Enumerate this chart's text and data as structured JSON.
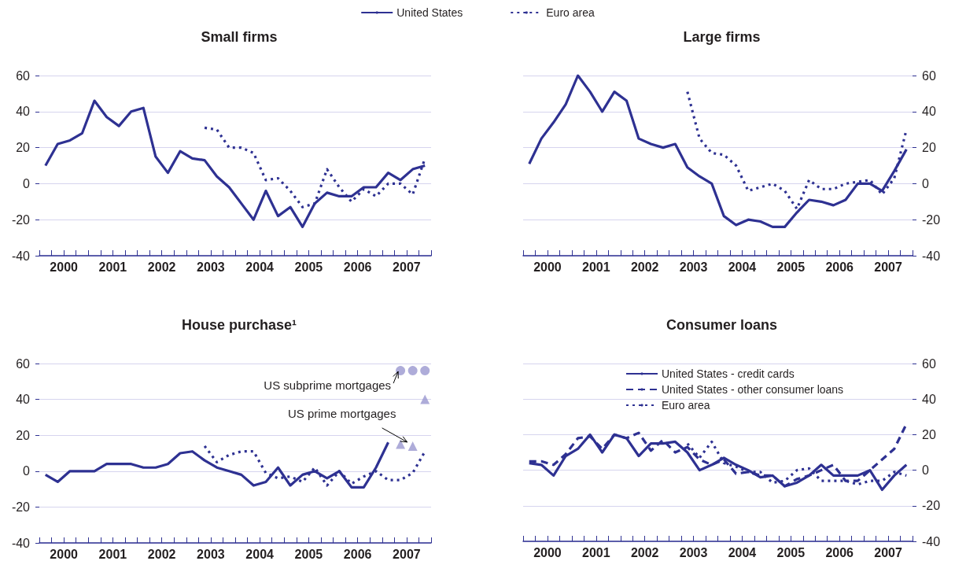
{
  "chart_data": [
    {
      "type": "line",
      "title": "Small firms",
      "legend": "top",
      "grid": "y",
      "x": [
        2000.125,
        2000.375,
        2000.625,
        2000.875,
        2001.125,
        2001.375,
        2001.625,
        2001.875,
        2002.125,
        2002.375,
        2002.625,
        2002.875,
        2003.125,
        2003.375,
        2003.625,
        2003.875,
        2004.125,
        2004.375,
        2004.625,
        2004.875,
        2005.125,
        2005.375,
        2005.625,
        2005.875,
        2006.125,
        2006.375,
        2006.625,
        2006.875,
        2007.125,
        2007.375,
        2007.625,
        2007.875
      ],
      "xlim": [
        2000,
        2008
      ],
      "xticks": [
        {
          "value": 2000,
          "label": null
        },
        {
          "value": 2000.25,
          "label": null
        },
        {
          "value": 2000.5,
          "label": "2000"
        },
        {
          "value": 2000.75,
          "label": null
        },
        {
          "value": 2001,
          "label": null
        },
        {
          "value": 2001.25,
          "label": null
        },
        {
          "value": 2001.5,
          "label": "2001"
        },
        {
          "value": 2001.75,
          "label": null
        },
        {
          "value": 2002,
          "label": null
        },
        {
          "value": 2002.25,
          "label": null
        },
        {
          "value": 2002.5,
          "label": "2002"
        },
        {
          "value": 2002.75,
          "label": null
        },
        {
          "value": 2003,
          "label": null
        },
        {
          "value": 2003.25,
          "label": null
        },
        {
          "value": 2003.5,
          "label": "2003"
        },
        {
          "value": 2003.75,
          "label": null
        },
        {
          "value": 2004,
          "label": null
        },
        {
          "value": 2004.25,
          "label": null
        },
        {
          "value": 2004.5,
          "label": "2004"
        },
        {
          "value": 2004.75,
          "label": null
        },
        {
          "value": 2005,
          "label": null
        },
        {
          "value": 2005.25,
          "label": null
        },
        {
          "value": 2005.5,
          "label": "2005"
        },
        {
          "value": 2005.75,
          "label": null
        },
        {
          "value": 2006,
          "label": null
        },
        {
          "value": 2006.25,
          "label": null
        },
        {
          "value": 2006.5,
          "label": "2006"
        },
        {
          "value": 2006.75,
          "label": null
        },
        {
          "value": 2007,
          "label": null
        },
        {
          "value": 2007.25,
          "label": null
        },
        {
          "value": 2007.5,
          "label": "2007"
        },
        {
          "value": 2007.75,
          "label": null
        },
        {
          "value": 2008,
          "label": null
        }
      ],
      "ylim": [
        -40,
        60
      ],
      "yticks": [
        -40,
        -20,
        0,
        20,
        40,
        60
      ],
      "series": [
        {
          "name": "United States",
          "color": "#2e3192",
          "line_style": "solid",
          "marker": "none",
          "values": [
            10,
            22,
            24,
            28,
            46,
            37,
            32,
            40,
            42,
            15,
            6,
            18,
            14,
            13,
            4,
            -2,
            -11,
            -20,
            -4,
            -18,
            -13,
            -24,
            -11,
            -5,
            -7,
            -7,
            -2,
            -2,
            6,
            2,
            8,
            10
          ]
        },
        {
          "name": "Euro area",
          "color": "#2e3192",
          "line_style": "dotted",
          "marker": "none",
          "values": [
            null,
            null,
            null,
            null,
            null,
            null,
            null,
            null,
            null,
            null,
            null,
            null,
            null,
            31,
            30,
            20,
            20,
            17,
            2,
            3,
            -4,
            -13,
            -11,
            8,
            -2,
            -10,
            -3,
            -7,
            0,
            0,
            -6,
            14
          ]
        }
      ]
    },
    {
      "type": "line",
      "title": "Large firms",
      "grid": "y",
      "x": [
        2000.125,
        2000.375,
        2000.625,
        2000.875,
        2001.125,
        2001.375,
        2001.625,
        2001.875,
        2002.125,
        2002.375,
        2002.625,
        2002.875,
        2003.125,
        2003.375,
        2003.625,
        2003.875,
        2004.125,
        2004.375,
        2004.625,
        2004.875,
        2005.125,
        2005.375,
        2005.625,
        2005.875,
        2006.125,
        2006.375,
        2006.625,
        2006.875,
        2007.125,
        2007.375,
        2007.625,
        2007.875
      ],
      "xlim": [
        2000,
        2008
      ],
      "xticks": [
        {
          "value": 2000,
          "label": null
        },
        {
          "value": 2000.25,
          "label": null
        },
        {
          "value": 2000.5,
          "label": "2000"
        },
        {
          "value": 2000.75,
          "label": null
        },
        {
          "value": 2001,
          "label": null
        },
        {
          "value": 2001.25,
          "label": null
        },
        {
          "value": 2001.5,
          "label": "2001"
        },
        {
          "value": 2001.75,
          "label": null
        },
        {
          "value": 2002,
          "label": null
        },
        {
          "value": 2002.25,
          "label": null
        },
        {
          "value": 2002.5,
          "label": "2002"
        },
        {
          "value": 2002.75,
          "label": null
        },
        {
          "value": 2003,
          "label": null
        },
        {
          "value": 2003.25,
          "label": null
        },
        {
          "value": 2003.5,
          "label": "2003"
        },
        {
          "value": 2003.75,
          "label": null
        },
        {
          "value": 2004,
          "label": null
        },
        {
          "value": 2004.25,
          "label": null
        },
        {
          "value": 2004.5,
          "label": "2004"
        },
        {
          "value": 2004.75,
          "label": null
        },
        {
          "value": 2005,
          "label": null
        },
        {
          "value": 2005.25,
          "label": null
        },
        {
          "value": 2005.5,
          "label": "2005"
        },
        {
          "value": 2005.75,
          "label": null
        },
        {
          "value": 2006,
          "label": null
        },
        {
          "value": 2006.25,
          "label": null
        },
        {
          "value": 2006.5,
          "label": "2006"
        },
        {
          "value": 2006.75,
          "label": null
        },
        {
          "value": 2007,
          "label": null
        },
        {
          "value": 2007.25,
          "label": null
        },
        {
          "value": 2007.5,
          "label": "2007"
        },
        {
          "value": 2007.75,
          "label": null
        },
        {
          "value": 2008,
          "label": null
        }
      ],
      "ylim": [
        -40,
        60
      ],
      "yticks": [
        -40,
        -20,
        0,
        20,
        40,
        60
      ],
      "series": [
        {
          "color": "#2e3192",
          "line_style": "solid",
          "marker": "none",
          "values": [
            11,
            25,
            34,
            44,
            60,
            51,
            40,
            51,
            46,
            25,
            22,
            20,
            22,
            9,
            4,
            0,
            -18,
            -23,
            -20,
            -21,
            -24,
            -24,
            -16,
            -9,
            -10,
            -12,
            -9,
            0,
            0,
            -4,
            7,
            19
          ]
        },
        {
          "color": "#2e3192",
          "line_style": "dotted",
          "marker": "none",
          "values": [
            null,
            null,
            null,
            null,
            null,
            null,
            null,
            null,
            null,
            null,
            null,
            null,
            null,
            51,
            25,
            17,
            16,
            10,
            -4,
            -2,
            0,
            -4,
            -14,
            2,
            -3,
            -3,
            0,
            1,
            2,
            -6,
            3,
            30
          ]
        }
      ]
    },
    {
      "type": "line",
      "title": "House purchase¹",
      "grid": "y",
      "x": [
        2000.125,
        2000.375,
        2000.625,
        2000.875,
        2001.125,
        2001.375,
        2001.625,
        2001.875,
        2002.125,
        2002.375,
        2002.625,
        2002.875,
        2003.125,
        2003.375,
        2003.625,
        2003.875,
        2004.125,
        2004.375,
        2004.625,
        2004.875,
        2005.125,
        2005.375,
        2005.625,
        2005.875,
        2006.125,
        2006.375,
        2006.625,
        2006.875,
        2007.125,
        2007.375,
        2007.625,
        2007.875
      ],
      "xlim": [
        2000,
        2008
      ],
      "xticks": [
        {
          "value": 2000,
          "label": null
        },
        {
          "value": 2000.25,
          "label": null
        },
        {
          "value": 2000.5,
          "label": "2000"
        },
        {
          "value": 2000.75,
          "label": null
        },
        {
          "value": 2001,
          "label": null
        },
        {
          "value": 2001.25,
          "label": null
        },
        {
          "value": 2001.5,
          "label": "2001"
        },
        {
          "value": 2001.75,
          "label": null
        },
        {
          "value": 2002,
          "label": null
        },
        {
          "value": 2002.25,
          "label": null
        },
        {
          "value": 2002.5,
          "label": "2002"
        },
        {
          "value": 2002.75,
          "label": null
        },
        {
          "value": 2003,
          "label": null
        },
        {
          "value": 2003.25,
          "label": null
        },
        {
          "value": 2003.5,
          "label": "2003"
        },
        {
          "value": 2003.75,
          "label": null
        },
        {
          "value": 2004,
          "label": null
        },
        {
          "value": 2004.25,
          "label": null
        },
        {
          "value": 2004.5,
          "label": "2004"
        },
        {
          "value": 2004.75,
          "label": null
        },
        {
          "value": 2005,
          "label": null
        },
        {
          "value": 2005.25,
          "label": null
        },
        {
          "value": 2005.5,
          "label": "2005"
        },
        {
          "value": 2005.75,
          "label": null
        },
        {
          "value": 2006,
          "label": null
        },
        {
          "value": 2006.25,
          "label": null
        },
        {
          "value": 2006.5,
          "label": "2006"
        },
        {
          "value": 2006.75,
          "label": null
        },
        {
          "value": 2007,
          "label": null
        },
        {
          "value": 2007.25,
          "label": null
        },
        {
          "value": 2007.5,
          "label": "2007"
        },
        {
          "value": 2007.75,
          "label": null
        },
        {
          "value": 2008,
          "label": null
        }
      ],
      "ylim": [
        -40,
        60
      ],
      "yticks": [
        -40,
        -20,
        0,
        20,
        40,
        60
      ],
      "annotations": [
        {
          "text": "US subprime mortgages",
          "x": 2007.375,
          "y": 56
        },
        {
          "text": "US prime mortgages",
          "x": 2007.625,
          "y": 14
        }
      ],
      "series": [
        {
          "color": "#2e3192",
          "line_style": "solid",
          "marker": "none",
          "values": [
            -2,
            -6,
            0,
            0,
            0,
            4,
            4,
            4,
            2,
            2,
            4,
            10,
            11,
            6,
            2,
            0,
            -2,
            -8,
            -6,
            2,
            -8,
            -2,
            0,
            -4,
            0,
            -9,
            -9,
            2,
            16,
            null,
            null,
            null
          ]
        },
        {
          "color": "#2e3192",
          "line_style": "dotted",
          "marker": "none",
          "values": [
            null,
            null,
            null,
            null,
            null,
            null,
            null,
            null,
            null,
            null,
            null,
            null,
            null,
            14,
            5,
            9,
            11,
            11,
            -1,
            -4,
            -3,
            -6,
            2,
            -8,
            0,
            -7,
            -3,
            0,
            -5,
            -5,
            -1,
            11
          ]
        },
        {
          "type": "scatter",
          "color": "#9a97d0",
          "marker": "circle",
          "values": [
            null,
            null,
            null,
            null,
            null,
            null,
            null,
            null,
            null,
            null,
            null,
            null,
            null,
            null,
            null,
            null,
            null,
            null,
            null,
            null,
            null,
            null,
            null,
            null,
            null,
            null,
            null,
            null,
            null,
            56,
            56,
            56
          ]
        },
        {
          "type": "scatter",
          "color": "#9a97d0",
          "marker": "triangle",
          "values": [
            null,
            null,
            null,
            null,
            null,
            null,
            null,
            null,
            null,
            null,
            null,
            null,
            null,
            null,
            null,
            null,
            null,
            null,
            null,
            null,
            null,
            null,
            null,
            null,
            null,
            null,
            null,
            null,
            null,
            15,
            14,
            40
          ]
        }
      ]
    },
    {
      "type": "line",
      "title": "Consumer loans",
      "grid": "y",
      "legend": "top left",
      "x": [
        2000.125,
        2000.375,
        2000.625,
        2000.875,
        2001.125,
        2001.375,
        2001.625,
        2001.875,
        2002.125,
        2002.375,
        2002.625,
        2002.875,
        2003.125,
        2003.375,
        2003.625,
        2003.875,
        2004.125,
        2004.375,
        2004.625,
        2004.875,
        2005.125,
        2005.375,
        2005.625,
        2005.875,
        2006.125,
        2006.375,
        2006.625,
        2006.875,
        2007.125,
        2007.375,
        2007.625,
        2007.875
      ],
      "xlim": [
        2000,
        2008
      ],
      "xticks": [
        {
          "value": 2000,
          "label": null
        },
        {
          "value": 2000.25,
          "label": null
        },
        {
          "value": 2000.5,
          "label": "2000"
        },
        {
          "value": 2000.75,
          "label": null
        },
        {
          "value": 2001,
          "label": null
        },
        {
          "value": 2001.25,
          "label": null
        },
        {
          "value": 2001.5,
          "label": "2001"
        },
        {
          "value": 2001.75,
          "label": null
        },
        {
          "value": 2002,
          "label": null
        },
        {
          "value": 2002.25,
          "label": null
        },
        {
          "value": 2002.5,
          "label": "2002"
        },
        {
          "value": 2002.75,
          "label": null
        },
        {
          "value": 2003,
          "label": null
        },
        {
          "value": 2003.25,
          "label": null
        },
        {
          "value": 2003.5,
          "label": "2003"
        },
        {
          "value": 2003.75,
          "label": null
        },
        {
          "value": 2004,
          "label": null
        },
        {
          "value": 2004.25,
          "label": null
        },
        {
          "value": 2004.5,
          "label": "2004"
        },
        {
          "value": 2004.75,
          "label": null
        },
        {
          "value": 2005,
          "label": null
        },
        {
          "value": 2005.25,
          "label": null
        },
        {
          "value": 2005.5,
          "label": "2005"
        },
        {
          "value": 2005.75,
          "label": null
        },
        {
          "value": 2006,
          "label": null
        },
        {
          "value": 2006.25,
          "label": null
        },
        {
          "value": 2006.5,
          "label": "2006"
        },
        {
          "value": 2006.75,
          "label": null
        },
        {
          "value": 2007,
          "label": null
        },
        {
          "value": 2007.25,
          "label": null
        },
        {
          "value": 2007.5,
          "label": "2007"
        },
        {
          "value": 2007.75,
          "label": null
        },
        {
          "value": 2008,
          "label": null
        }
      ],
      "ylim": [
        -40,
        60
      ],
      "yticks": [
        -40,
        -20,
        0,
        20,
        40,
        60
      ],
      "series": [
        {
          "name": "United States - credit cards",
          "color": "#2e3192",
          "line_style": "solid",
          "marker": "none",
          "values": [
            4,
            3,
            -3,
            8,
            12,
            20,
            10,
            20,
            18,
            8,
            15,
            15,
            16,
            10,
            0,
            3,
            7,
            3,
            0,
            -4,
            -3,
            -9,
            -7,
            -3,
            3,
            -3,
            -3,
            -3,
            0,
            -11,
            -3,
            3
          ]
        },
        {
          "name": "United States - other consumer loans",
          "color": "#2e3192",
          "line_style": "dashed",
          "marker": "none",
          "values": [
            5,
            5,
            3,
            9,
            18,
            19,
            12,
            20,
            18,
            21,
            11,
            17,
            10,
            13,
            6,
            3,
            6,
            -2,
            -1,
            -3,
            -3,
            -9,
            -5,
            -3,
            0,
            3,
            -6,
            -6,
            0,
            6,
            12,
            26
          ]
        },
        {
          "name": "Euro area",
          "color": "#2e3192",
          "line_style": "dotted",
          "marker": "none",
          "values": [
            null,
            null,
            null,
            null,
            null,
            null,
            null,
            null,
            null,
            null,
            null,
            null,
            null,
            15,
            7,
            16,
            4,
            2,
            -1,
            -1,
            -7,
            -6,
            0,
            1,
            -6,
            -6,
            -6,
            -8,
            -6,
            -6,
            -1,
            -3
          ]
        }
      ]
    }
  ]
}
